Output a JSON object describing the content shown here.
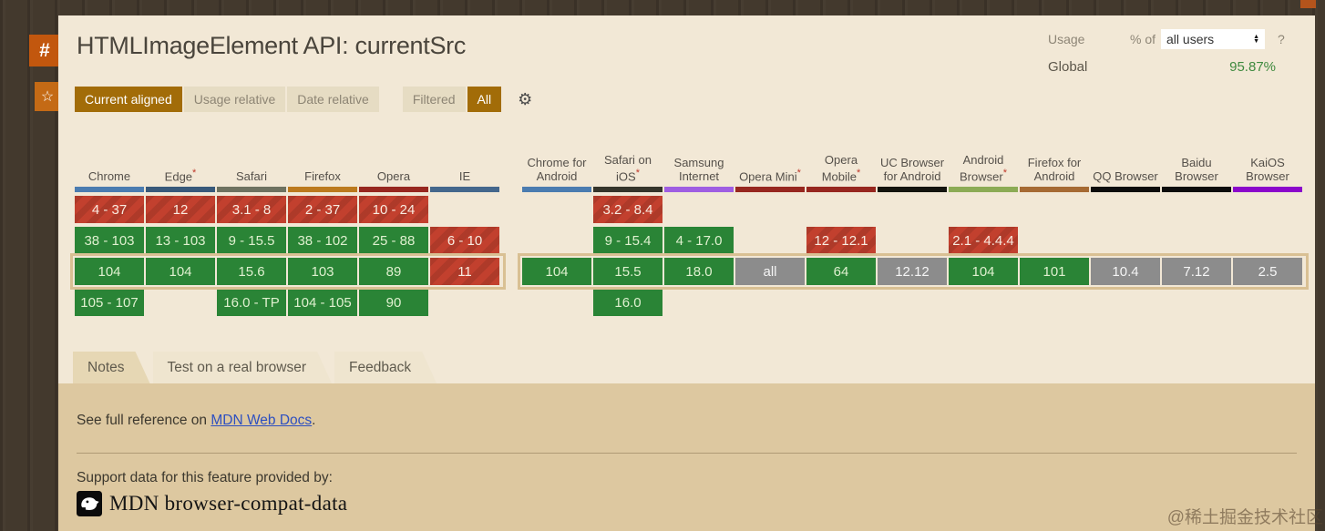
{
  "page": {
    "title": "HTMLImageElement API: currentSrc"
  },
  "icons": {
    "gear": "⚙",
    "help": "?",
    "hash": "#",
    "star": "☆",
    "select_arrows": "up-down",
    "mdn_logo": "mdn-dino"
  },
  "usage": {
    "label": "Usage",
    "percent_of_label": "% of",
    "selector_value": "all users",
    "global_label": "Global",
    "global_value": "95.87%"
  },
  "filters": {
    "view_buttons": [
      {
        "label": "Current aligned",
        "active": true
      },
      {
        "label": "Usage relative",
        "active": false
      },
      {
        "label": "Date relative",
        "active": false
      }
    ],
    "filter_buttons": [
      {
        "label": "Filtered",
        "active": false
      },
      {
        "label": "All",
        "active": true
      }
    ]
  },
  "table": {
    "current_row_index": 2,
    "row_count": 4,
    "legend": {
      "supported_color": "#2a8436",
      "unsupported_color": "#c2402e",
      "unknown_color": "#8c8c8c",
      "current_row_border": "#d9c093"
    },
    "groups": [
      {
        "name": "desktop",
        "browsers": [
          {
            "name": "Chrome",
            "asterisk": false,
            "bar_color": "#4b7cb0",
            "versions": [
              {
                "text": "4 - 37",
                "support": "unsupported"
              },
              {
                "text": "38 - 103",
                "support": "supported"
              },
              {
                "text": "104",
                "support": "supported"
              },
              {
                "text": "105 - 107",
                "support": "supported"
              }
            ]
          },
          {
            "name": "Edge",
            "asterisk": true,
            "bar_color": "#38597a",
            "versions": [
              {
                "text": "12",
                "support": "unsupported"
              },
              {
                "text": "13 - 103",
                "support": "supported"
              },
              {
                "text": "104",
                "support": "supported"
              },
              {
                "text": "",
                "support": "none"
              }
            ]
          },
          {
            "name": "Safari",
            "asterisk": false,
            "bar_color": "#6e7260",
            "versions": [
              {
                "text": "3.1 - 8",
                "support": "unsupported"
              },
              {
                "text": "9 - 15.5",
                "support": "supported"
              },
              {
                "text": "15.6",
                "support": "supported"
              },
              {
                "text": "16.0 - TP",
                "support": "supported"
              }
            ]
          },
          {
            "name": "Firefox",
            "asterisk": false,
            "bar_color": "#bc7a1e",
            "versions": [
              {
                "text": "2 - 37",
                "support": "unsupported"
              },
              {
                "text": "38 - 102",
                "support": "supported"
              },
              {
                "text": "103",
                "support": "supported"
              },
              {
                "text": "104 - 105",
                "support": "supported"
              }
            ]
          },
          {
            "name": "Opera",
            "asterisk": false,
            "bar_color": "#97271f",
            "versions": [
              {
                "text": "10 - 24",
                "support": "unsupported"
              },
              {
                "text": "25 - 88",
                "support": "supported"
              },
              {
                "text": "89",
                "support": "supported"
              },
              {
                "text": "90",
                "support": "supported"
              }
            ]
          },
          {
            "name": "IE",
            "asterisk": false,
            "bar_color": "#44678c",
            "versions": [
              {
                "text": "",
                "support": "none"
              },
              {
                "text": "6 - 10",
                "support": "unsupported"
              },
              {
                "text": "11",
                "support": "unsupported"
              },
              {
                "text": "",
                "support": "none"
              }
            ]
          }
        ]
      },
      {
        "name": "mobile",
        "browsers": [
          {
            "name": "Chrome for Android",
            "asterisk": false,
            "bar_color": "#4b7cb0",
            "versions": [
              {
                "text": "",
                "support": "none"
              },
              {
                "text": "",
                "support": "none"
              },
              {
                "text": "104",
                "support": "supported"
              },
              {
                "text": "",
                "support": "none"
              }
            ]
          },
          {
            "name": "Safari on iOS",
            "asterisk": true,
            "bar_color": "#35352b",
            "versions": [
              {
                "text": "3.2 - 8.4",
                "support": "unsupported"
              },
              {
                "text": "9 - 15.4",
                "support": "supported"
              },
              {
                "text": "15.5",
                "support": "supported"
              },
              {
                "text": "16.0",
                "support": "supported"
              }
            ]
          },
          {
            "name": "Samsung Internet",
            "asterisk": false,
            "bar_color": "#9f5ee2",
            "versions": [
              {
                "text": "",
                "support": "none"
              },
              {
                "text": "4 - 17.0",
                "support": "supported"
              },
              {
                "text": "18.0",
                "support": "supported"
              },
              {
                "text": "",
                "support": "none"
              }
            ]
          },
          {
            "name": "Opera Mini",
            "asterisk": true,
            "bar_color": "#97271f",
            "versions": [
              {
                "text": "",
                "support": "none"
              },
              {
                "text": "",
                "support": "none"
              },
              {
                "text": "all",
                "support": "unknown"
              },
              {
                "text": "",
                "support": "none"
              }
            ]
          },
          {
            "name": "Opera Mobile",
            "asterisk": true,
            "bar_color": "#97271f",
            "versions": [
              {
                "text": "",
                "support": "none"
              },
              {
                "text": "12 - 12.1",
                "support": "unsupported"
              },
              {
                "text": "64",
                "support": "supported"
              },
              {
                "text": "",
                "support": "none"
              }
            ]
          },
          {
            "name": "UC Browser for Android",
            "asterisk": false,
            "bar_color": "#14140e",
            "versions": [
              {
                "text": "",
                "support": "none"
              },
              {
                "text": "",
                "support": "none"
              },
              {
                "text": "12.12",
                "support": "unknown"
              },
              {
                "text": "",
                "support": "none"
              }
            ]
          },
          {
            "name": "Android Browser",
            "asterisk": true,
            "bar_color": "#8cab55",
            "versions": [
              {
                "text": "",
                "support": "none"
              },
              {
                "text": "2.1 - 4.4.4",
                "support": "unsupported"
              },
              {
                "text": "104",
                "support": "supported"
              },
              {
                "text": "",
                "support": "none"
              }
            ]
          },
          {
            "name": "Firefox for Android",
            "asterisk": false,
            "bar_color": "#a66a33",
            "versions": [
              {
                "text": "",
                "support": "none"
              },
              {
                "text": "",
                "support": "none"
              },
              {
                "text": "101",
                "support": "supported"
              },
              {
                "text": "",
                "support": "none"
              }
            ]
          },
          {
            "name": "QQ Browser",
            "asterisk": false,
            "bar_color": "#0c0c0c",
            "versions": [
              {
                "text": "",
                "support": "none"
              },
              {
                "text": "",
                "support": "none"
              },
              {
                "text": "10.4",
                "support": "unknown"
              },
              {
                "text": "",
                "support": "none"
              }
            ]
          },
          {
            "name": "Baidu Browser",
            "asterisk": false,
            "bar_color": "#0c0c0c",
            "versions": [
              {
                "text": "",
                "support": "none"
              },
              {
                "text": "",
                "support": "none"
              },
              {
                "text": "7.12",
                "support": "unknown"
              },
              {
                "text": "",
                "support": "none"
              }
            ]
          },
          {
            "name": "KaiOS Browser",
            "asterisk": false,
            "bar_color": "#8b07cb",
            "versions": [
              {
                "text": "",
                "support": "none"
              },
              {
                "text": "",
                "support": "none"
              },
              {
                "text": "2.5",
                "support": "unknown"
              },
              {
                "text": "",
                "support": "none"
              }
            ]
          }
        ]
      }
    ]
  },
  "tabs": [
    {
      "label": "Notes",
      "active": true
    },
    {
      "label": "Test on a real browser",
      "active": false
    },
    {
      "label": "Feedback",
      "active": false
    }
  ],
  "notes": {
    "text_before_link": "See full reference on ",
    "link_text": "MDN Web Docs",
    "text_after_link": "."
  },
  "support_footer": {
    "text": "Support data for this feature provided by:",
    "source_name": "MDN browser-compat-data"
  },
  "watermark": "@稀土掘金技术社区"
}
